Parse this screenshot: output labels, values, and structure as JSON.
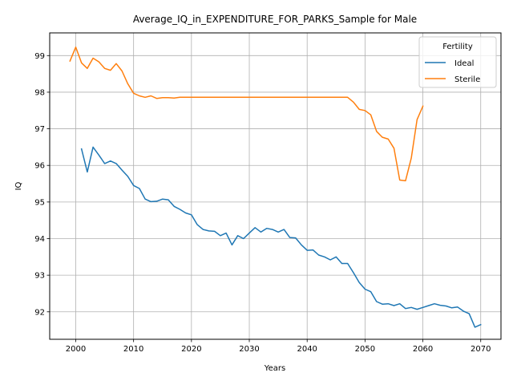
{
  "chart_data": {
    "type": "line",
    "title": "Average_IQ_in_EXPENDITURE_FOR_PARKS_Sample for Male",
    "xlabel": "Years",
    "ylabel": "IQ",
    "xlim": [
      1995.5,
      2073.5
    ],
    "ylim": [
      91.25,
      99.62
    ],
    "xticks": [
      2000,
      2010,
      2020,
      2030,
      2040,
      2050,
      2060,
      2070
    ],
    "yticks": [
      92,
      93,
      94,
      95,
      96,
      97,
      98,
      99
    ],
    "grid": true,
    "legend": {
      "title": "Fertility",
      "placement": "top-right"
    },
    "series": [
      {
        "name": "Ideal",
        "color": "#1f77b4",
        "x": [
          2001,
          2002,
          2003,
          2004,
          2005,
          2006,
          2007,
          2008,
          2009,
          2010,
          2011,
          2012,
          2013,
          2014,
          2015,
          2016,
          2017,
          2018,
          2019,
          2020,
          2021,
          2022,
          2023,
          2024,
          2025,
          2026,
          2027,
          2028,
          2029,
          2030,
          2031,
          2032,
          2033,
          2034,
          2035,
          2036,
          2037,
          2038,
          2039,
          2040,
          2041,
          2042,
          2043,
          2044,
          2045,
          2046,
          2047,
          2048,
          2049,
          2050,
          2051,
          2052,
          2053,
          2054,
          2055,
          2056,
          2057,
          2058,
          2059,
          2060,
          2061,
          2062,
          2063,
          2064,
          2065,
          2066,
          2067,
          2068,
          2069,
          2070
        ],
        "y": [
          96.45,
          95.82,
          96.5,
          96.28,
          96.05,
          96.12,
          96.05,
          95.87,
          95.7,
          95.45,
          95.37,
          95.08,
          95.01,
          95.02,
          95.08,
          95.06,
          94.88,
          94.8,
          94.7,
          94.65,
          94.38,
          94.25,
          94.21,
          94.2,
          94.08,
          94.15,
          93.83,
          94.08,
          94.0,
          94.15,
          94.3,
          94.18,
          94.28,
          94.25,
          94.18,
          94.25,
          94.03,
          94.02,
          93.83,
          93.68,
          93.69,
          93.55,
          93.5,
          93.42,
          93.5,
          93.32,
          93.32,
          93.07,
          92.8,
          92.62,
          92.55,
          92.28,
          92.21,
          92.22,
          92.17,
          92.22,
          92.09,
          92.12,
          92.07,
          92.12,
          92.17,
          92.22,
          92.18,
          92.16,
          92.11,
          92.13,
          92.02,
          91.95,
          91.58,
          91.65
        ]
      },
      {
        "name": "Sterile",
        "color": "#ff7f0e",
        "x": [
          1999,
          2000,
          2001,
          2002,
          2003,
          2004,
          2005,
          2006,
          2007,
          2008,
          2009,
          2010,
          2011,
          2012,
          2013,
          2014,
          2015,
          2016,
          2017,
          2018,
          2019,
          2020,
          2021,
          2022,
          2023,
          2024,
          2025,
          2026,
          2027,
          2028,
          2029,
          2030,
          2031,
          2032,
          2033,
          2034,
          2035,
          2036,
          2037,
          2038,
          2039,
          2040,
          2041,
          2042,
          2043,
          2044,
          2045,
          2046,
          2047,
          2048,
          2049,
          2050,
          2051,
          2052,
          2053,
          2054,
          2055,
          2056,
          2057,
          2058,
          2059,
          2060
        ],
        "y": [
          98.85,
          99.23,
          98.8,
          98.65,
          98.93,
          98.83,
          98.65,
          98.6,
          98.78,
          98.58,
          98.23,
          97.97,
          97.9,
          97.86,
          97.9,
          97.83,
          97.85,
          97.85,
          97.84,
          97.86,
          97.86,
          97.86,
          97.86,
          97.86,
          97.86,
          97.86,
          97.86,
          97.86,
          97.86,
          97.86,
          97.86,
          97.86,
          97.86,
          97.86,
          97.86,
          97.86,
          97.86,
          97.86,
          97.86,
          97.86,
          97.86,
          97.86,
          97.86,
          97.86,
          97.86,
          97.86,
          97.86,
          97.86,
          97.86,
          97.73,
          97.53,
          97.5,
          97.38,
          96.93,
          96.77,
          96.72,
          96.47,
          95.6,
          95.58,
          96.2,
          97.25,
          97.62
        ]
      }
    ]
  }
}
